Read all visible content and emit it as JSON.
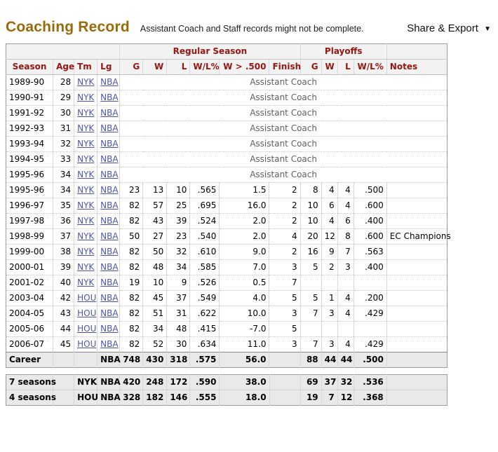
{
  "header": {
    "title": "Coaching Record",
    "subtitle": "Assistant Coach and Staff records might not be complete.",
    "share_export_label": "Share & Export",
    "share_export_caret": "▼"
  },
  "table": {
    "group_headers": {
      "regular_season": "Regular Season",
      "playoffs": "Playoffs"
    },
    "column_headers": {
      "season": "Season",
      "age": "Age",
      "tm": "Tm",
      "lg": "Lg",
      "g": "G",
      "w": "W",
      "l": "L",
      "wl_pct": "W/L%",
      "w_gt_500": "W > .500",
      "finish": "Finish",
      "p_g": "G",
      "p_w": "W",
      "p_l": "L",
      "p_wl_pct": "W/L%",
      "notes": "Notes"
    },
    "assistant_note": "Assistant Coach",
    "assistant_rows": [
      {
        "season": "1989-90",
        "age": "28",
        "tm": "NYK",
        "lg": "NBA"
      },
      {
        "season": "1990-91",
        "age": "29",
        "tm": "NYK",
        "lg": "NBA"
      },
      {
        "season": "1991-92",
        "age": "30",
        "tm": "NYK",
        "lg": "NBA"
      },
      {
        "season": "1992-93",
        "age": "31",
        "tm": "NYK",
        "lg": "NBA"
      },
      {
        "season": "1993-94",
        "age": "32",
        "tm": "NYK",
        "lg": "NBA"
      },
      {
        "season": "1994-95",
        "age": "33",
        "tm": "NYK",
        "lg": "NBA"
      },
      {
        "season": "1995-96",
        "age": "34",
        "tm": "NYK",
        "lg": "NBA"
      }
    ],
    "season_rows": [
      {
        "season": "1995-96",
        "age": "34",
        "tm": "NYK",
        "lg": "NBA",
        "g": "23",
        "w": "13",
        "l": "10",
        "wl": ".565",
        "wgt": "1.5",
        "finish": "2",
        "pg": "8",
        "pw": "4",
        "pl": "4",
        "pwl": ".500",
        "notes": ""
      },
      {
        "season": "1996-97",
        "age": "35",
        "tm": "NYK",
        "lg": "NBA",
        "g": "82",
        "w": "57",
        "l": "25",
        "wl": ".695",
        "wgt": "16.0",
        "finish": "2",
        "pg": "10",
        "pw": "6",
        "pl": "4",
        "pwl": ".600",
        "notes": ""
      },
      {
        "season": "1997-98",
        "age": "36",
        "tm": "NYK",
        "lg": "NBA",
        "g": "82",
        "w": "43",
        "l": "39",
        "wl": ".524",
        "wgt": "2.0",
        "finish": "2",
        "pg": "10",
        "pw": "4",
        "pl": "6",
        "pwl": ".400",
        "notes": ""
      },
      {
        "season": "1998-99",
        "age": "37",
        "tm": "NYK",
        "lg": "NBA",
        "g": "50",
        "w": "27",
        "l": "23",
        "wl": ".540",
        "wgt": "2.0",
        "finish": "4",
        "pg": "20",
        "pw": "12",
        "pl": "8",
        "pwl": ".600",
        "notes": "EC Champions"
      },
      {
        "season": "1999-00",
        "age": "38",
        "tm": "NYK",
        "lg": "NBA",
        "g": "82",
        "w": "50",
        "l": "32",
        "wl": ".610",
        "wgt": "9.0",
        "finish": "2",
        "pg": "16",
        "pw": "9",
        "pl": "7",
        "pwl": ".563",
        "notes": ""
      },
      {
        "season": "2000-01",
        "age": "39",
        "tm": "NYK",
        "lg": "NBA",
        "g": "82",
        "w": "48",
        "l": "34",
        "wl": ".585",
        "wgt": "7.0",
        "finish": "3",
        "pg": "5",
        "pw": "2",
        "pl": "3",
        "pwl": ".400",
        "notes": ""
      },
      {
        "season": "2001-02",
        "age": "40",
        "tm": "NYK",
        "lg": "NBA",
        "g": "19",
        "w": "10",
        "l": "9",
        "wl": ".526",
        "wgt": "0.5",
        "finish": "7",
        "pg": "",
        "pw": "",
        "pl": "",
        "pwl": "",
        "notes": ""
      },
      {
        "season": "2003-04",
        "age": "42",
        "tm": "HOU",
        "lg": "NBA",
        "g": "82",
        "w": "45",
        "l": "37",
        "wl": ".549",
        "wgt": "4.0",
        "finish": "5",
        "pg": "5",
        "pw": "1",
        "pl": "4",
        "pwl": ".200",
        "notes": ""
      },
      {
        "season": "2004-05",
        "age": "43",
        "tm": "HOU",
        "lg": "NBA",
        "g": "82",
        "w": "51",
        "l": "31",
        "wl": ".622",
        "wgt": "10.0",
        "finish": "3",
        "pg": "7",
        "pw": "3",
        "pl": "4",
        "pwl": ".429",
        "notes": ""
      },
      {
        "season": "2005-06",
        "age": "44",
        "tm": "HOU",
        "lg": "NBA",
        "g": "82",
        "w": "34",
        "l": "48",
        "wl": ".415",
        "wgt": "-7.0",
        "finish": "5",
        "pg": "",
        "pw": "",
        "pl": "",
        "pwl": "",
        "notes": ""
      },
      {
        "season": "2006-07",
        "age": "45",
        "tm": "HOU",
        "lg": "NBA",
        "g": "82",
        "w": "52",
        "l": "30",
        "wl": ".634",
        "wgt": "11.0",
        "finish": "3",
        "pg": "7",
        "pw": "3",
        "pl": "4",
        "pwl": ".429",
        "notes": ""
      }
    ],
    "career_row": {
      "season": "Career",
      "age": "",
      "tm": "",
      "lg": "NBA",
      "g": "748",
      "w": "430",
      "l": "318",
      "wl": ".575",
      "wgt": "56.0",
      "finish": "",
      "pg": "88",
      "pw": "44",
      "pl": "44",
      "pwl": ".500",
      "notes": ""
    },
    "summary_rows": [
      {
        "season": "7 seasons",
        "age": "",
        "tm": "NYK",
        "lg": "NBA",
        "g": "420",
        "w": "248",
        "l": "172",
        "wl": ".590",
        "wgt": "38.0",
        "finish": "",
        "pg": "69",
        "pw": "37",
        "pl": "32",
        "pwl": ".536",
        "notes": ""
      },
      {
        "season": "4 seasons",
        "age": "",
        "tm": "HOU",
        "lg": "NBA",
        "g": "328",
        "w": "182",
        "l": "146",
        "wl": ".555",
        "wgt": "18.0",
        "finish": "",
        "pg": "19",
        "pw": "7",
        "pl": "12",
        "pwl": ".368",
        "notes": ""
      }
    ]
  },
  "colors": {
    "title": "#9a6a0a",
    "header_text": "#971612",
    "link": "#4f55ae",
    "assistant_text": "#5f5f5f",
    "summary_row_bg": "#e9e9e9",
    "table_header_bg": "#f2f2f2"
  }
}
